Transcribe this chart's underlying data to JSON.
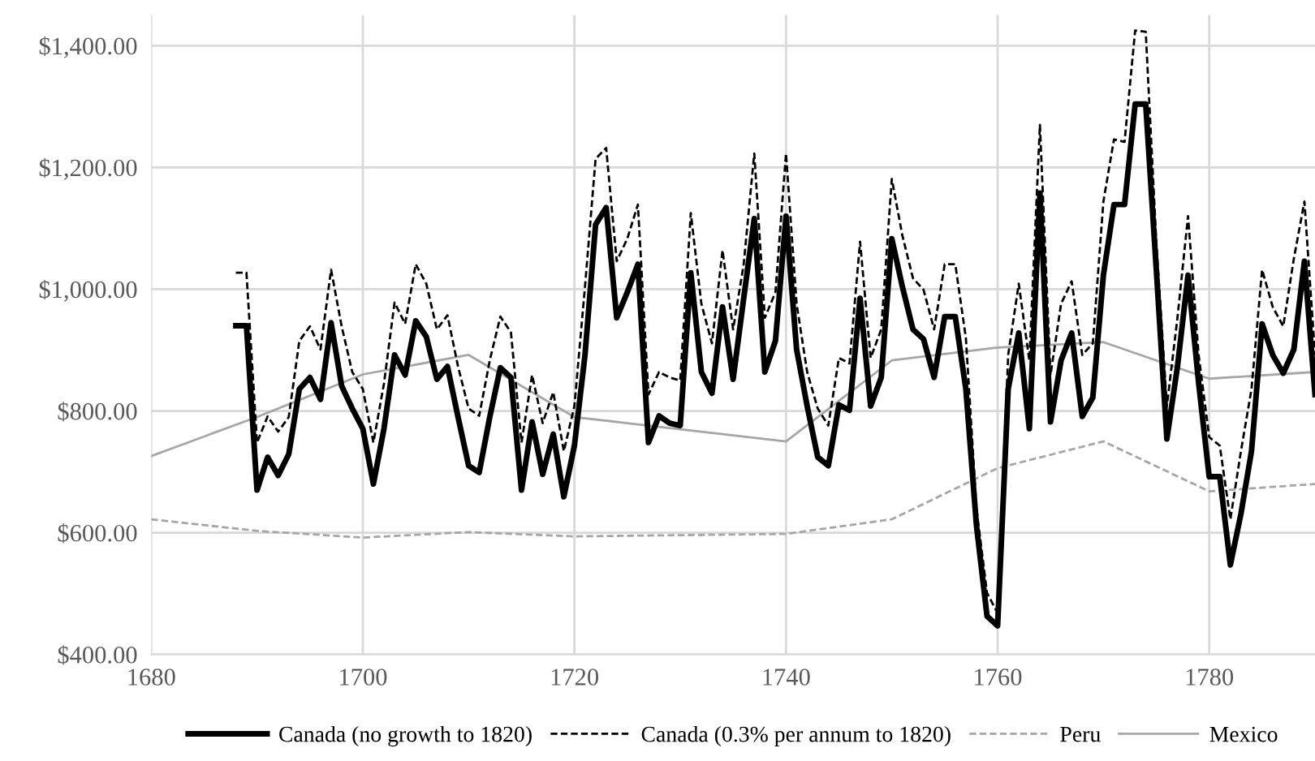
{
  "chart_data": {
    "type": "line",
    "xlim": [
      1680,
      1790
    ],
    "xticks": [
      1680,
      1700,
      1720,
      1740,
      1760,
      1780
    ],
    "ylim": [
      400,
      1450
    ],
    "yticks": [
      {
        "value": 400,
        "label": "$400.00"
      },
      {
        "value": 600,
        "label": "$600.00"
      },
      {
        "value": 800,
        "label": "$800.00"
      },
      {
        "value": 1000,
        "label": "$1,000.00"
      },
      {
        "value": 1200,
        "label": "$1,200.00"
      },
      {
        "value": 1400,
        "label": "$1,400.00"
      }
    ],
    "grid": true,
    "legend": "bottom",
    "series": [
      {
        "name": "Canada (no growth to 1820)",
        "color": "#000000",
        "line_style": "solid",
        "x": [
          1688,
          1689,
          1690,
          1691,
          1692,
          1693,
          1694,
          1695,
          1696,
          1697,
          1698,
          1699,
          1700,
          1701,
          1702,
          1703,
          1704,
          1705,
          1706,
          1707,
          1708,
          1709,
          1710,
          1711,
          1712,
          1713,
          1714,
          1715,
          1716,
          1717,
          1718,
          1719,
          1720,
          1721,
          1722,
          1723,
          1724,
          1725,
          1726,
          1727,
          1728,
          1729,
          1730,
          1731,
          1732,
          1733,
          1734,
          1735,
          1736,
          1737,
          1738,
          1739,
          1740,
          1741,
          1742,
          1743,
          1744,
          1745,
          1746,
          1747,
          1748,
          1749,
          1750,
          1751,
          1752,
          1753,
          1754,
          1755,
          1756,
          1757,
          1758,
          1759,
          1760,
          1761,
          1762,
          1763,
          1764,
          1765,
          1766,
          1767,
          1768,
          1769,
          1770,
          1771,
          1772,
          1773,
          1774,
          1775,
          1776,
          1777,
          1778,
          1779,
          1780,
          1781,
          1782,
          1783,
          1784,
          1785,
          1786,
          1787,
          1788,
          1789,
          1790
        ],
        "values": [
          940,
          940,
          670,
          724,
          694,
          729,
          836,
          855,
          819,
          945,
          841,
          804,
          771,
          680,
          771,
          892,
          859,
          948,
          922,
          852,
          873,
          790,
          710,
          699,
          790,
          871,
          855,
          670,
          782,
          696,
          762,
          659,
          743,
          892,
          1106,
          1134,
          953,
          995,
          1041,
          748,
          792,
          780,
          776,
          1027,
          864,
          829,
          971,
          852,
          985,
          1116,
          864,
          915,
          1120,
          901,
          808,
          724,
          710,
          810,
          801,
          985,
          808,
          855,
          1083,
          1004,
          934,
          918,
          855,
          955,
          955,
          836,
          612,
          463,
          447,
          836,
          928,
          771,
          1158,
          782,
          883,
          928,
          791,
          822,
          1023,
          1139,
          1139,
          1304,
          1304,
          1032,
          754,
          873,
          1023,
          846,
          692,
          692,
          547,
          631,
          734,
          943,
          892,
          862,
          901,
          1046,
          827
        ]
      },
      {
        "name": "Canada (0.3% per annum to 1820)",
        "color": "#000000",
        "line_style": "dashed",
        "x": [
          1688,
          1689,
          1690,
          1691,
          1692,
          1693,
          1694,
          1695,
          1696,
          1697,
          1698,
          1699,
          1700,
          1701,
          1702,
          1703,
          1704,
          1705,
          1706,
          1707,
          1708,
          1709,
          1710,
          1711,
          1712,
          1713,
          1714,
          1715,
          1716,
          1717,
          1718,
          1719,
          1720,
          1721,
          1722,
          1723,
          1724,
          1725,
          1726,
          1727,
          1728,
          1729,
          1730,
          1731,
          1732,
          1733,
          1734,
          1735,
          1736,
          1737,
          1738,
          1739,
          1740,
          1741,
          1742,
          1743,
          1744,
          1745,
          1746,
          1747,
          1748,
          1749,
          1750,
          1751,
          1752,
          1753,
          1754,
          1755,
          1756,
          1757,
          1758,
          1759,
          1760,
          1761,
          1762,
          1763,
          1764,
          1765,
          1766,
          1767,
          1768,
          1769,
          1770,
          1771,
          1772,
          1773,
          1774,
          1775,
          1776,
          1777,
          1778,
          1779,
          1780,
          1781,
          1782,
          1783,
          1784,
          1785,
          1786,
          1787,
          1788,
          1789,
          1790
        ],
        "values": [
          1027,
          1027,
          748,
          791,
          766,
          790,
          915,
          939,
          901,
          1032,
          939,
          864,
          836,
          748,
          845,
          978,
          943,
          1041,
          1009,
          934,
          957,
          873,
          804,
          792,
          883,
          955,
          929,
          748,
          859,
          780,
          831,
          734,
          808,
          1004,
          1214,
          1232,
          1046,
          1083,
          1139,
          827,
          864,
          855,
          850,
          1125,
          976,
          911,
          1064,
          934,
          1041,
          1223,
          953,
          995,
          1223,
          976,
          864,
          804,
          776,
          887,
          878,
          1078,
          887,
          934,
          1181,
          1088,
          1018,
          999,
          934,
          1041,
          1041,
          920,
          640,
          501,
          468,
          892,
          1009,
          883,
          1270,
          859,
          976,
          1013,
          892,
          911,
          1144,
          1246,
          1242,
          1425,
          1423,
          1078,
          808,
          953,
          1120,
          892,
          757,
          743,
          622,
          734,
          836,
          1032,
          971,
          939,
          1050,
          1144,
          892
        ]
      },
      {
        "name": "Peru",
        "color": "#a6a6a6",
        "line_style": "dashed",
        "x": [
          1680,
          1690,
          1700,
          1710,
          1720,
          1730,
          1740,
          1750,
          1760,
          1770,
          1780,
          1790
        ],
        "values": [
          622,
          603,
          592,
          601,
          594,
          596,
          598,
          622,
          706,
          750,
          668,
          680
        ]
      },
      {
        "name": "Mexico",
        "color": "#a6a6a6",
        "line_style": "solid",
        "x": [
          1680,
          1690,
          1700,
          1710,
          1720,
          1730,
          1740,
          1750,
          1760,
          1770,
          1780,
          1790
        ],
        "values": [
          726,
          790,
          860,
          892,
          790,
          770,
          750,
          883,
          904,
          913,
          853,
          864
        ]
      }
    ]
  }
}
